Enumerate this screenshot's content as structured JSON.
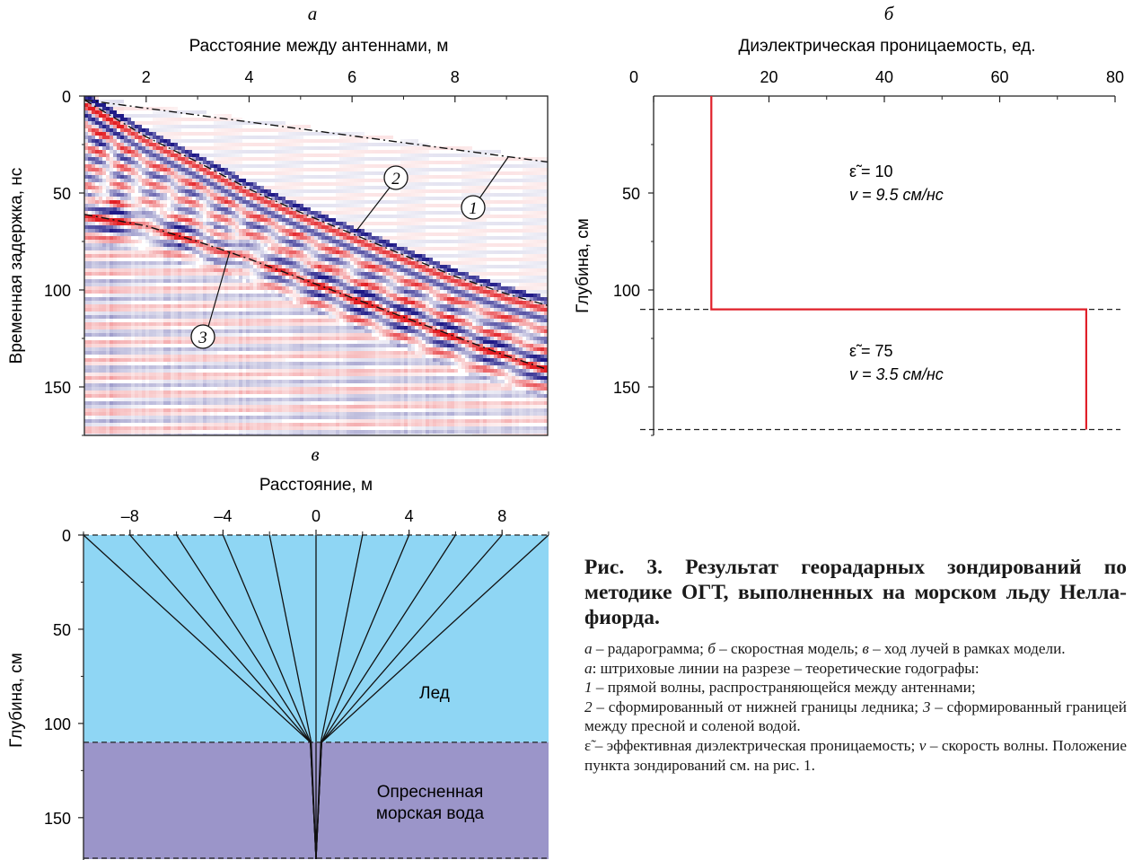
{
  "panel_a": {
    "label": "а",
    "xlabel": "Расстояние между антеннами, м",
    "ylabel": "Временная задержка, нс",
    "xticks": [
      "2",
      "4",
      "6",
      "8"
    ],
    "yticks": [
      "0",
      "50",
      "100",
      "150"
    ],
    "markers": [
      "1",
      "2",
      "3"
    ],
    "chart_data": {
      "type": "heatmap",
      "xlabel": "Расстояние между антеннами, м",
      "ylabel": "Временная задержка, нс",
      "xlim": [
        0.8,
        9.8
      ],
      "ylim": [
        0,
        175
      ],
      "hodographs": [
        {
          "name": "1",
          "x": [
            0.8,
            9.8
          ],
          "y": [
            2,
            34
          ]
        },
        {
          "name": "2",
          "x": [
            0.8,
            2.0,
            3.0,
            4.0,
            5.0,
            6.0,
            7.0,
            8.0,
            9.0,
            9.8
          ],
          "y": [
            2,
            21,
            34,
            48,
            60,
            71,
            82,
            93,
            102,
            108
          ]
        },
        {
          "name": "3",
          "x": [
            0.8,
            2.0,
            3.0,
            4.0,
            5.0,
            6.0,
            7.0,
            8.0,
            9.0,
            9.8
          ],
          "y": [
            61,
            67,
            75,
            84,
            94,
            104,
            114,
            124,
            134,
            141
          ]
        }
      ]
    }
  },
  "panel_b": {
    "label": "б",
    "xlabel": "Диэлектрическая проницаемость, ед.",
    "ylabel": "Глубина, см",
    "xticks": [
      "0",
      "20",
      "40",
      "60",
      "80"
    ],
    "yticks": [
      "50",
      "100",
      "150"
    ],
    "layer1_eps": "ε̃ = 10",
    "layer1_v": "v = 9.5 см/нс",
    "layer2_eps": "ε̃ = 75",
    "layer2_v": "v = 3.5 см/нс",
    "chart_data": {
      "type": "line",
      "xlabel": "Диэлектрическая проницаемость, ед.",
      "ylabel": "Глубина, см",
      "xlim": [
        0,
        80
      ],
      "ylim": [
        0,
        175
      ],
      "series": [
        {
          "x": [
            10,
            10,
            75,
            75
          ],
          "y": [
            0,
            110,
            110,
            172
          ]
        }
      ],
      "boundaries_depth": [
        110,
        172
      ]
    }
  },
  "panel_c": {
    "label": "в",
    "xlabel": "Расстояние, м",
    "ylabel": "Глубина, см",
    "xticks": [
      "–8",
      "–4",
      "0",
      "4",
      "8"
    ],
    "yticks": [
      "0",
      "50",
      "100",
      "150"
    ],
    "ice_label": "Лед",
    "water_label_1": "Опресненная",
    "water_label_2": "морская вода",
    "ice_color": "#8fd6f4",
    "water_color": "#9b95c9",
    "chart_data": {
      "type": "diagram",
      "xlabel": "Расстояние, м",
      "ylabel": "Глубина, см",
      "xlim": [
        -10,
        10
      ],
      "ylim": [
        0,
        172
      ],
      "layer_boundaries_depth": [
        0,
        110,
        172
      ],
      "ray_sources_x": [
        -10,
        -8,
        -6,
        -4,
        -2,
        0,
        2,
        4,
        6,
        8,
        10
      ],
      "reflection_depth": 172
    }
  },
  "caption": {
    "title": "Рис. 3. Результат георадарных зондирований по методике ОГТ, выполненных на морском льду Нелла-фиорда.",
    "l1_a": "а",
    "l1_t1": " – радарограмма; ",
    "l1_b": "б",
    "l1_t2": " – скоростная модель; ",
    "l1_c": "в",
    "l1_t3": " – ход лучей в рамках модели.",
    "l2_a": "а",
    "l2_t": ": штриховые линии на разрезе – теоретические годографы:",
    "l3_n": "1",
    "l3_t": " – прямой волны, распространяющейся между антеннами;",
    "l4_n": "2",
    "l4_t1": " – сформированный от нижней границы ледника; ",
    "l4_n2": "3",
    "l4_t2": " – сформированный границей между пресной и соленой водой.",
    "l5_eps": "ε̃",
    "l5_t1": " – эффективная диэлектрическая проницаемость; ",
    "l5_v": "v",
    "l5_t2": " – скорость волны. Положение пункта зондирований см. на рис. 1."
  }
}
